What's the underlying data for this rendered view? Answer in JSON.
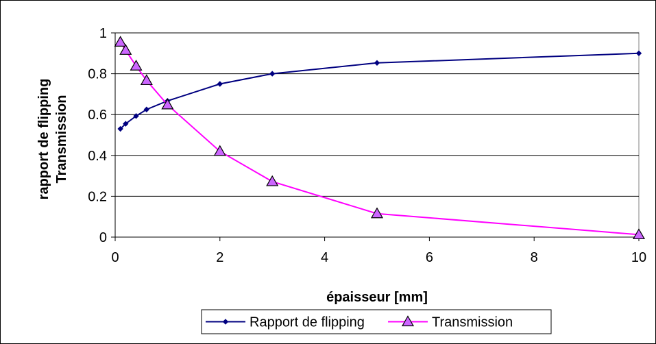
{
  "chart_data": {
    "type": "line",
    "title": "",
    "xlabel": "épaisseur [mm]",
    "ylabel_lines": [
      "rapport de flipping",
      "Transmission"
    ],
    "xlim": [
      0,
      10
    ],
    "ylim": [
      0,
      1
    ],
    "x_ticks": [
      0,
      2,
      4,
      6,
      8,
      10
    ],
    "y_ticks": [
      0,
      0.2,
      0.4,
      0.6,
      0.8,
      1
    ],
    "x_tick_labels": [
      "0",
      "2",
      "4",
      "6",
      "8",
      "10"
    ],
    "y_tick_labels": [
      "0",
      "0.2",
      "0.4",
      "0.6",
      "0.8",
      "1"
    ],
    "grid": "horizontal",
    "legend_position": "bottom",
    "series": [
      {
        "name": "Rapport de flipping",
        "color": "#000080",
        "marker": "diamond",
        "x": [
          0.1,
          0.2,
          0.4,
          0.6,
          1,
          2,
          3,
          5,
          10
        ],
        "values": [
          0.53,
          0.555,
          0.593,
          0.625,
          0.667,
          0.75,
          0.8,
          0.853,
          0.9
        ]
      },
      {
        "name": "Transmission",
        "color": "#ff00ff",
        "marker": "triangle",
        "x": [
          0.1,
          0.2,
          0.4,
          0.6,
          1,
          2,
          3,
          5,
          10
        ],
        "values": [
          0.955,
          0.915,
          0.838,
          0.767,
          0.648,
          0.42,
          0.272,
          0.115,
          0.012
        ]
      }
    ]
  }
}
